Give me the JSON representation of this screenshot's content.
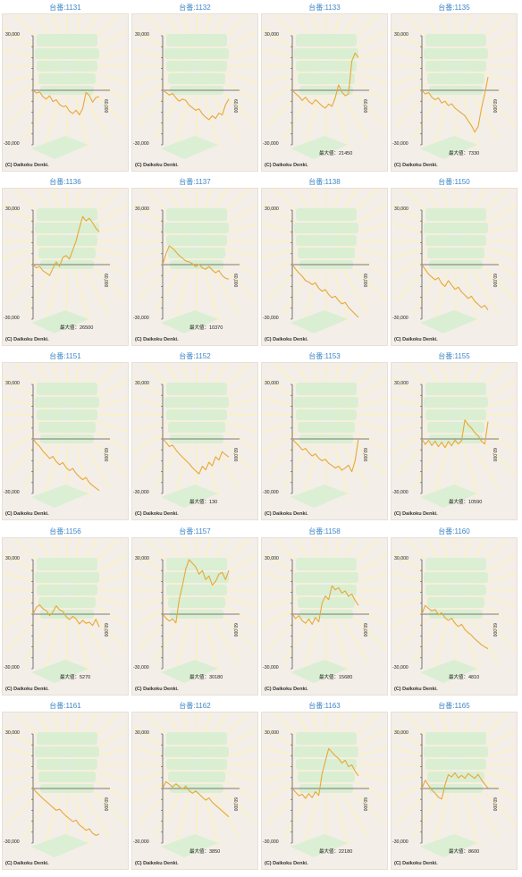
{
  "copyright": "(C) Daikoku Denki.",
  "max_prefix": "最大値：",
  "colors": {
    "line": "#e6a83a",
    "title": "#3d86c6",
    "panel_bg": "#f4eee8",
    "axis": "#555555"
  },
  "chart_data": [
    {
      "type": "line",
      "title": "台番:1131",
      "y_tick_labels": [
        "30,000",
        "-30,000"
      ],
      "x_tick_label": "60,000",
      "ylim": [
        -30000,
        30000
      ],
      "xlim": [
        0,
        60000
      ],
      "max_label": null,
      "x": [
        0,
        3000,
        6000,
        9000,
        12000,
        15000,
        18000,
        21000,
        24000,
        27000,
        30000,
        33000,
        36000,
        39000,
        42000,
        45000,
        48000,
        51000,
        54000,
        57000,
        60000
      ],
      "y": [
        0,
        -1500,
        -900,
        -3600,
        -4800,
        -3000,
        -6200,
        -5200,
        -7800,
        -9000,
        -8600,
        -11500,
        -12800,
        -11000,
        -13500,
        -10000,
        -1200,
        -2800,
        -6500,
        -4000,
        -3500
      ]
    },
    {
      "type": "line",
      "title": "台番:1132",
      "y_tick_labels": [
        "30,000",
        "-30,000"
      ],
      "x_tick_label": "60,000",
      "ylim": [
        -30000,
        30000
      ],
      "xlim": [
        0,
        60000
      ],
      "max_label": null,
      "x": [
        0,
        3000,
        6000,
        9000,
        12000,
        15000,
        18000,
        21000,
        24000,
        27000,
        30000,
        33000,
        36000,
        39000,
        42000,
        45000,
        48000,
        51000,
        54000,
        57000,
        60000
      ],
      "y": [
        0,
        -1200,
        -2600,
        -1800,
        -4200,
        -6000,
        -4800,
        -5600,
        -8200,
        -9600,
        -11000,
        -10200,
        -13000,
        -14800,
        -16200,
        -14000,
        -15500,
        -12500,
        -13600,
        -8000,
        -4800
      ]
    },
    {
      "type": "line",
      "title": "台番:1133",
      "y_tick_labels": [
        "30,000",
        "-30,000"
      ],
      "x_tick_label": "60,000",
      "ylim": [
        -30000,
        30000
      ],
      "xlim": [
        0,
        60000
      ],
      "max_label": "21450",
      "x": [
        0,
        3000,
        6000,
        9000,
        12000,
        15000,
        18000,
        21000,
        24000,
        27000,
        30000,
        33000,
        36000,
        39000,
        42000,
        45000,
        48000,
        51000,
        54000,
        57000,
        60000
      ],
      "y": [
        0,
        -1800,
        -3400,
        -5600,
        -3800,
        -6200,
        -7600,
        -5200,
        -6800,
        -8600,
        -9800,
        -7600,
        -8800,
        -4000,
        3000,
        -1000,
        -3000,
        -2000,
        16000,
        20500,
        18000
      ]
    },
    {
      "type": "line",
      "title": "台番:1135",
      "y_tick_labels": [
        "30,000",
        "-30,000"
      ],
      "x_tick_label": "60,000",
      "ylim": [
        -30000,
        30000
      ],
      "xlim": [
        0,
        60000
      ],
      "max_label": "7330",
      "x": [
        0,
        3000,
        6000,
        9000,
        12000,
        15000,
        18000,
        21000,
        24000,
        27000,
        30000,
        33000,
        36000,
        39000,
        42000,
        45000,
        48000,
        51000,
        54000,
        57000,
        60000
      ],
      "y": [
        0,
        -2000,
        -1200,
        -3800,
        -5200,
        -4200,
        -7000,
        -6000,
        -8400,
        -7400,
        -9800,
        -11200,
        -12600,
        -14000,
        -16800,
        -19500,
        -23000,
        -20000,
        -10000,
        -2000,
        7300
      ]
    },
    {
      "type": "line",
      "title": "台番:1136",
      "y_tick_labels": [
        "30,000",
        "-30,000"
      ],
      "x_tick_label": "60,000",
      "ylim": [
        -30000,
        30000
      ],
      "xlim": [
        0,
        60000
      ],
      "max_label": "26500",
      "x": [
        0,
        3000,
        6000,
        9000,
        12000,
        15000,
        18000,
        21000,
        24000,
        27000,
        30000,
        33000,
        36000,
        39000,
        42000,
        45000,
        48000,
        51000,
        54000,
        57000,
        60000
      ],
      "y": [
        0,
        -1800,
        -1000,
        -3400,
        -4600,
        -6000,
        -2000,
        1500,
        -1000,
        4000,
        5000,
        3000,
        8000,
        13000,
        20000,
        26500,
        24000,
        25500,
        23000,
        20000,
        18000
      ]
    },
    {
      "type": "line",
      "title": "台番:1137",
      "y_tick_labels": [
        "30,000",
        "-30,000"
      ],
      "x_tick_label": "60,000",
      "ylim": [
        -30000,
        30000
      ],
      "xlim": [
        0,
        60000
      ],
      "max_label": "10370",
      "x": [
        0,
        3000,
        6000,
        9000,
        12000,
        15000,
        18000,
        21000,
        24000,
        27000,
        30000,
        33000,
        36000,
        39000,
        42000,
        45000,
        48000,
        51000,
        54000,
        57000,
        60000
      ],
      "y": [
        0,
        6000,
        10300,
        9000,
        7000,
        5000,
        3500,
        2000,
        1500,
        500,
        -1200,
        200,
        -1800,
        -2600,
        -1000,
        -3000,
        -4500,
        -3200,
        -6000,
        -7500,
        -8000
      ]
    },
    {
      "type": "line",
      "title": "台番:1138",
      "y_tick_labels": [
        "30,000",
        "-30,000"
      ],
      "x_tick_label": "60,000",
      "ylim": [
        -30000,
        30000
      ],
      "xlim": [
        0,
        60000
      ],
      "max_label": null,
      "x": [
        0,
        3000,
        6000,
        9000,
        12000,
        15000,
        18000,
        21000,
        24000,
        27000,
        30000,
        33000,
        36000,
        39000,
        42000,
        45000,
        48000,
        51000,
        54000,
        57000,
        60000
      ],
      "y": [
        0,
        -2500,
        -4600,
        -6400,
        -8800,
        -9600,
        -11000,
        -10000,
        -13000,
        -14600,
        -13800,
        -16400,
        -18200,
        -17400,
        -19800,
        -21600,
        -20800,
        -23600,
        -25400,
        -27200,
        -29000
      ]
    },
    {
      "type": "line",
      "title": "台番:1150",
      "y_tick_labels": [
        "30,000",
        "-30,000"
      ],
      "x_tick_label": "60,000",
      "ylim": [
        -30000,
        30000
      ],
      "xlim": [
        0,
        60000
      ],
      "max_label": null,
      "x": [
        0,
        3000,
        6000,
        9000,
        12000,
        15000,
        18000,
        21000,
        24000,
        27000,
        30000,
        33000,
        36000,
        39000,
        42000,
        45000,
        48000,
        51000,
        54000,
        57000,
        60000
      ],
      "y": [
        0,
        -2600,
        -5200,
        -6800,
        -8400,
        -7200,
        -10400,
        -12000,
        -8800,
        -11200,
        -13600,
        -12400,
        -15000,
        -16800,
        -18600,
        -17400,
        -20200,
        -21800,
        -23600,
        -22400,
        -25000
      ]
    },
    {
      "type": "line",
      "title": "台番:1151",
      "y_tick_labels": [
        "30,000",
        "-30,000"
      ],
      "x_tick_label": "60,000",
      "ylim": [
        -30000,
        30000
      ],
      "xlim": [
        0,
        60000
      ],
      "max_label": null,
      "x": [
        0,
        3000,
        6000,
        9000,
        12000,
        15000,
        18000,
        21000,
        24000,
        27000,
        30000,
        33000,
        36000,
        39000,
        42000,
        45000,
        48000,
        51000,
        54000,
        57000,
        60000
      ],
      "y": [
        0,
        -2400,
        -4200,
        -6800,
        -8600,
        -10800,
        -9600,
        -12400,
        -14200,
        -13000,
        -15800,
        -17400,
        -16200,
        -19000,
        -20800,
        -22400,
        -21200,
        -24000,
        -25600,
        -27000,
        -28400
      ]
    },
    {
      "type": "line",
      "title": "台番:1152",
      "y_tick_labels": [
        "30,000",
        "-30,000"
      ],
      "x_tick_label": "60,000",
      "ylim": [
        -30000,
        30000
      ],
      "xlim": [
        0,
        60000
      ],
      "max_label": "130",
      "x": [
        0,
        3000,
        6000,
        9000,
        12000,
        15000,
        18000,
        21000,
        24000,
        27000,
        30000,
        33000,
        36000,
        39000,
        42000,
        45000,
        48000,
        51000,
        54000,
        57000,
        60000
      ],
      "y": [
        0,
        -1800,
        -4200,
        -3400,
        -6000,
        -8200,
        -10000,
        -11800,
        -13600,
        -15800,
        -17600,
        -19200,
        -15000,
        -17000,
        -12800,
        -14800,
        -9800,
        -11600,
        -7000,
        -8600,
        -10000
      ]
    },
    {
      "type": "line",
      "title": "台番:1153",
      "y_tick_labels": [
        "30,000",
        "-30,000"
      ],
      "x_tick_label": "60,000",
      "ylim": [
        -30000,
        30000
      ],
      "xlim": [
        0,
        60000
      ],
      "max_label": null,
      "x": [
        0,
        3000,
        6000,
        9000,
        12000,
        15000,
        18000,
        21000,
        24000,
        27000,
        30000,
        33000,
        36000,
        39000,
        42000,
        45000,
        48000,
        51000,
        54000,
        57000,
        60000
      ],
      "y": [
        0,
        -2000,
        -3800,
        -6000,
        -5200,
        -7600,
        -9400,
        -8200,
        -10600,
        -12000,
        -11200,
        -13400,
        -14600,
        -16000,
        -15000,
        -17200,
        -16000,
        -14400,
        -18000,
        -12000,
        0
      ]
    },
    {
      "type": "line",
      "title": "台番:1155",
      "y_tick_labels": [
        "30,000",
        "-30,000"
      ],
      "x_tick_label": "60,000",
      "ylim": [
        -30000,
        30000
      ],
      "xlim": [
        0,
        60000
      ],
      "max_label": "10590",
      "x": [
        0,
        3000,
        6000,
        9000,
        12000,
        15000,
        18000,
        21000,
        24000,
        27000,
        30000,
        33000,
        36000,
        39000,
        42000,
        45000,
        48000,
        51000,
        54000,
        57000,
        60000
      ],
      "y": [
        0,
        -3000,
        -800,
        -3600,
        -1200,
        -4200,
        -1800,
        -4800,
        -1400,
        -3800,
        -600,
        -2800,
        -1000,
        10500,
        7800,
        6000,
        3400,
        1800,
        -1200,
        -2800,
        9500
      ]
    },
    {
      "type": "line",
      "title": "台番:1156",
      "y_tick_labels": [
        "30,000",
        "-30,000"
      ],
      "x_tick_label": "60,000",
      "ylim": [
        -30000,
        30000
      ],
      "xlim": [
        0,
        60000
      ],
      "max_label": "5270",
      "x": [
        0,
        3000,
        6000,
        9000,
        12000,
        15000,
        18000,
        21000,
        24000,
        27000,
        30000,
        33000,
        36000,
        39000,
        42000,
        45000,
        48000,
        51000,
        54000,
        57000,
        60000
      ],
      "y": [
        0,
        3800,
        5200,
        3000,
        2000,
        -800,
        1200,
        4600,
        2400,
        1600,
        -1400,
        -3000,
        -1200,
        -2600,
        -5400,
        -3400,
        -5000,
        -4400,
        -6200,
        -2800,
        -7000
      ]
    },
    {
      "type": "line",
      "title": "台番:1157",
      "y_tick_labels": [
        "30,000",
        "-30,000"
      ],
      "x_tick_label": "60,000",
      "ylim": [
        -30000,
        30000
      ],
      "xlim": [
        0,
        60000
      ],
      "max_label": "30180",
      "x": [
        0,
        3000,
        6000,
        9000,
        12000,
        15000,
        18000,
        21000,
        24000,
        27000,
        30000,
        33000,
        36000,
        39000,
        42000,
        45000,
        48000,
        51000,
        54000,
        57000,
        60000
      ],
      "y": [
        0,
        -2200,
        -3800,
        -2600,
        -4800,
        8000,
        16000,
        25000,
        30000,
        28000,
        26000,
        22000,
        24000,
        19000,
        21000,
        16000,
        18000,
        22000,
        23000,
        19000,
        24000
      ]
    },
    {
      "type": "line",
      "title": "台番:1158",
      "y_tick_labels": [
        "30,000",
        "-30,000"
      ],
      "x_tick_label": "60,000",
      "ylim": [
        -30000,
        30000
      ],
      "xlim": [
        0,
        60000
      ],
      "max_label": "15680",
      "x": [
        0,
        3000,
        6000,
        9000,
        12000,
        15000,
        18000,
        21000,
        24000,
        27000,
        30000,
        33000,
        36000,
        39000,
        42000,
        45000,
        48000,
        51000,
        54000,
        57000,
        60000
      ],
      "y": [
        0,
        -2400,
        -800,
        -3600,
        -5000,
        -2600,
        -5600,
        -1800,
        -4200,
        6000,
        10000,
        8000,
        15600,
        13400,
        14600,
        11600,
        12800,
        9800,
        11000,
        7600,
        4800
      ]
    },
    {
      "type": "line",
      "title": "台番:1160",
      "y_tick_labels": [
        "30,000",
        "-30,000"
      ],
      "x_tick_label": "60,000",
      "ylim": [
        -30000,
        30000
      ],
      "xlim": [
        0,
        60000
      ],
      "max_label": "4810",
      "x": [
        0,
        3000,
        6000,
        9000,
        12000,
        15000,
        18000,
        21000,
        24000,
        27000,
        30000,
        33000,
        36000,
        39000,
        42000,
        45000,
        48000,
        51000,
        54000,
        57000,
        60000
      ],
      "y": [
        0,
        4800,
        3200,
        1800,
        2600,
        -400,
        800,
        -2000,
        -3400,
        -2200,
        -5000,
        -6800,
        -5600,
        -8400,
        -10200,
        -11600,
        -13600,
        -15200,
        -16800,
        -18000,
        -19000
      ]
    },
    {
      "type": "line",
      "title": "台番:1161",
      "y_tick_labels": [
        "30,000",
        "-30,000"
      ],
      "x_tick_label": "60,000",
      "ylim": [
        -30000,
        30000
      ],
      "xlim": [
        0,
        60000
      ],
      "max_label": null,
      "x": [
        0,
        3000,
        6000,
        9000,
        12000,
        15000,
        18000,
        21000,
        24000,
        27000,
        30000,
        33000,
        36000,
        39000,
        42000,
        45000,
        48000,
        51000,
        54000,
        57000,
        60000
      ],
      "y": [
        0,
        -2000,
        -3800,
        -5600,
        -7200,
        -8800,
        -10400,
        -12000,
        -11400,
        -13400,
        -15200,
        -16600,
        -18200,
        -17400,
        -20000,
        -21400,
        -23000,
        -22200,
        -24600,
        -25800,
        -25000
      ]
    },
    {
      "type": "line",
      "title": "台番:1162",
      "y_tick_labels": [
        "30,000",
        "-30,000"
      ],
      "x_tick_label": "60,000",
      "ylim": [
        -30000,
        30000
      ],
      "xlim": [
        0,
        60000
      ],
      "max_label": "3850",
      "x": [
        0,
        3000,
        6000,
        9000,
        12000,
        15000,
        18000,
        21000,
        24000,
        27000,
        30000,
        33000,
        36000,
        39000,
        42000,
        45000,
        48000,
        51000,
        54000,
        57000,
        60000
      ],
      "y": [
        0,
        3800,
        2400,
        800,
        2600,
        1000,
        -400,
        1400,
        -1200,
        -2600,
        -1400,
        -3000,
        -4800,
        -6400,
        -5200,
        -7600,
        -9200,
        -10800,
        -12400,
        -14000,
        -15600
      ]
    },
    {
      "type": "line",
      "title": "台番:1163",
      "y_tick_labels": [
        "30,000",
        "-30,000"
      ],
      "x_tick_label": "60,000",
      "ylim": [
        -30000,
        30000
      ],
      "xlim": [
        0,
        60000
      ],
      "max_label": "22180",
      "x": [
        0,
        3000,
        6000,
        9000,
        12000,
        15000,
        18000,
        21000,
        24000,
        27000,
        30000,
        33000,
        36000,
        39000,
        42000,
        45000,
        48000,
        51000,
        54000,
        57000,
        60000
      ],
      "y": [
        0,
        -2000,
        -4000,
        -3200,
        -5400,
        -2800,
        -5000,
        -1800,
        -3800,
        8000,
        15000,
        22000,
        20000,
        18000,
        16500,
        14000,
        15500,
        12000,
        13000,
        9500,
        7000
      ]
    },
    {
      "type": "line",
      "title": "台番:1165",
      "y_tick_labels": [
        "30,000",
        "-30,000"
      ],
      "x_tick_label": "60,000",
      "ylim": [
        -30000,
        30000
      ],
      "xlim": [
        0,
        60000
      ],
      "max_label": "8600",
      "x": [
        0,
        3000,
        6000,
        9000,
        12000,
        15000,
        18000,
        21000,
        24000,
        27000,
        30000,
        33000,
        36000,
        39000,
        42000,
        45000,
        48000,
        51000,
        54000,
        57000,
        60000
      ],
      "y": [
        0,
        4600,
        1800,
        -800,
        -2600,
        -4800,
        -5800,
        2000,
        7600,
        6400,
        8600,
        5800,
        7200,
        5600,
        8200,
        6800,
        5600,
        7800,
        4800,
        2400,
        200
      ]
    }
  ]
}
